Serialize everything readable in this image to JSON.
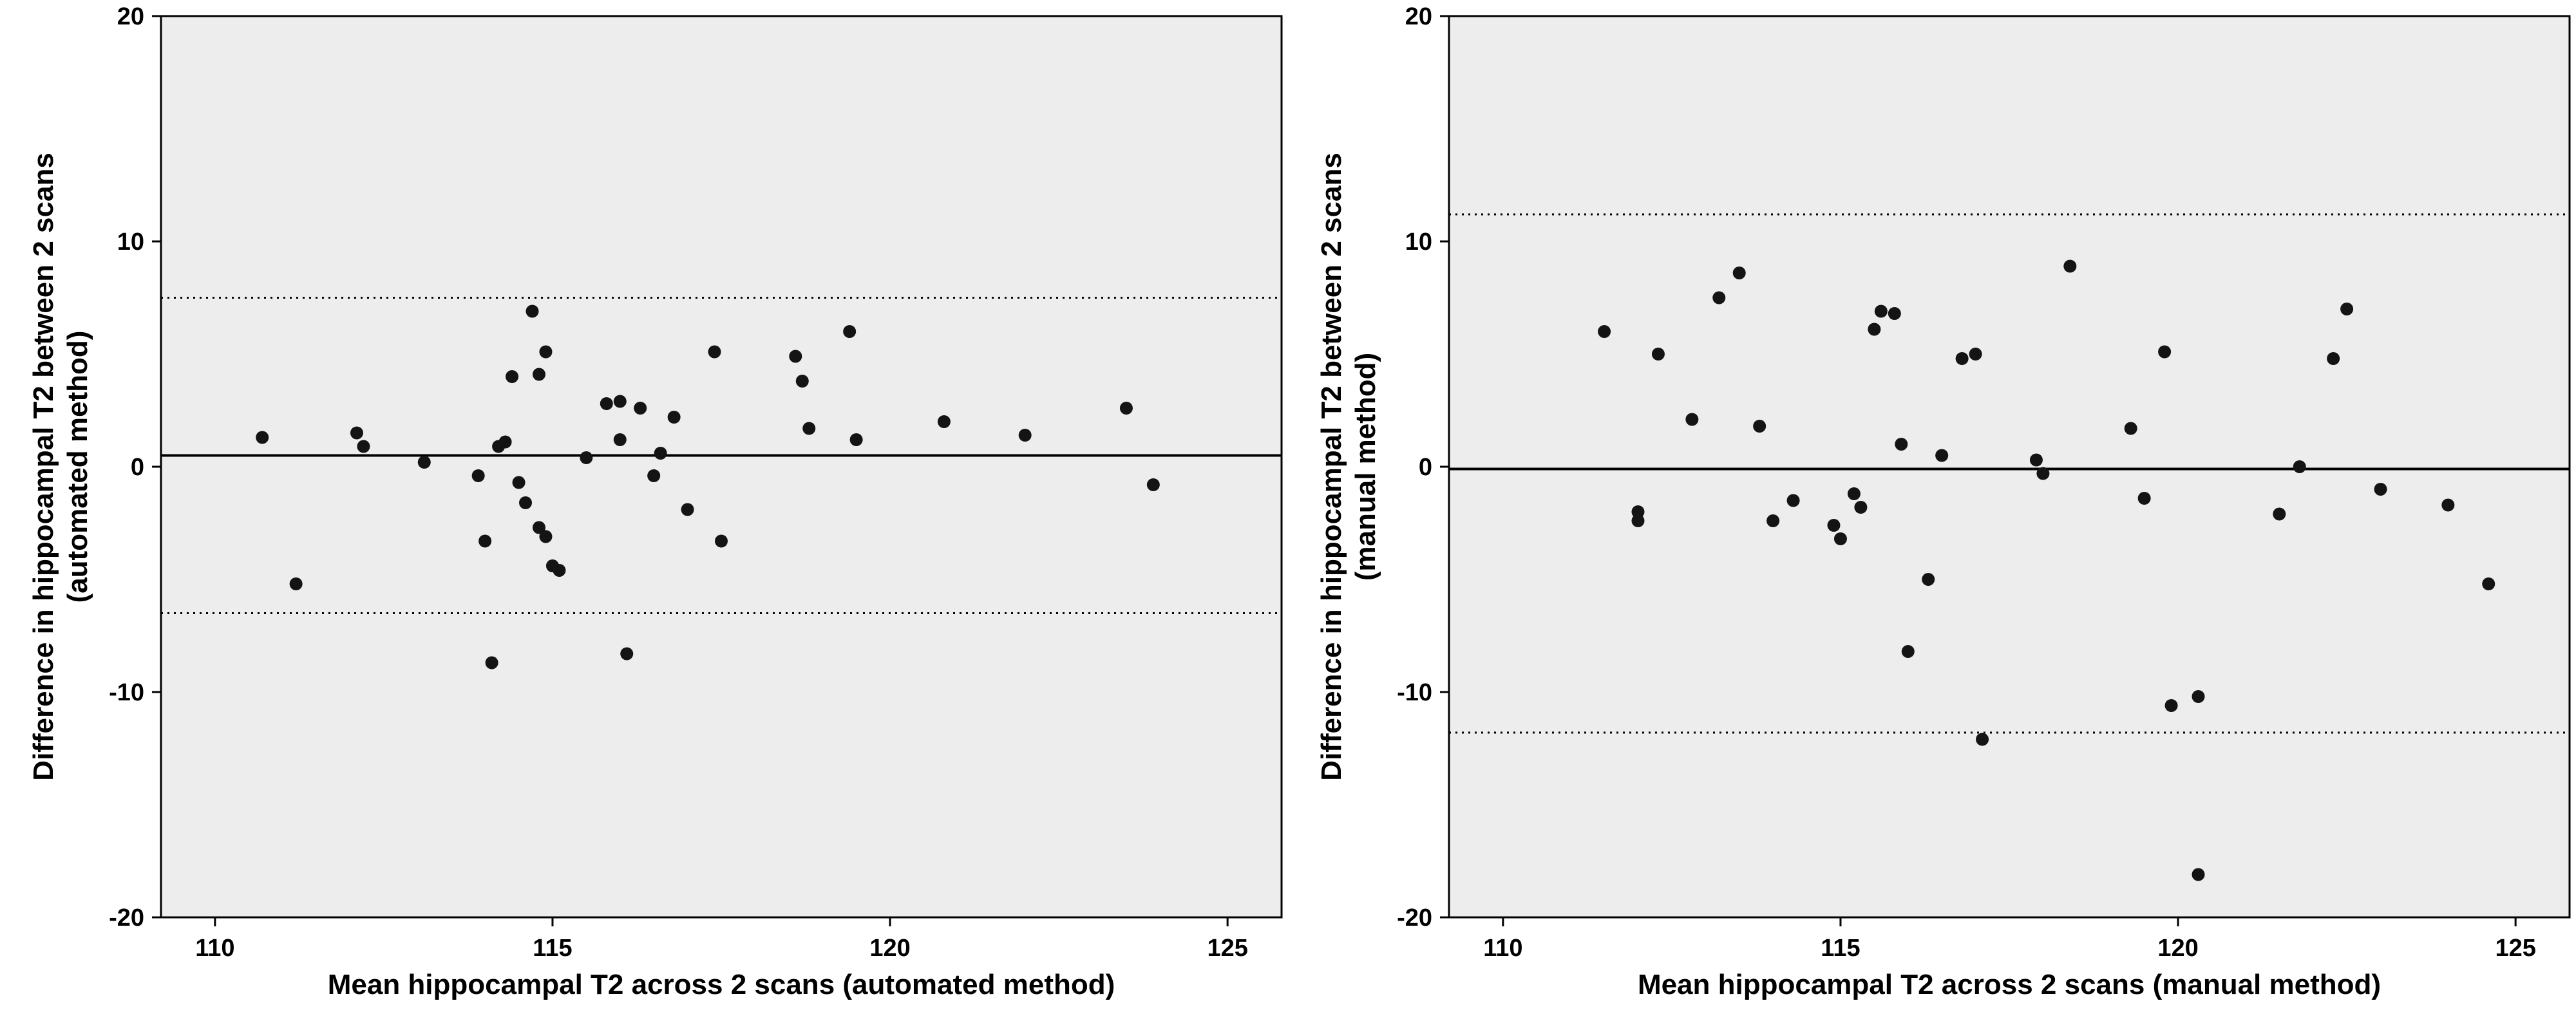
{
  "page": {
    "background": "#ffffff"
  },
  "style": {
    "plot_bg": "#ededed",
    "frame_color": "#000000",
    "point_color": "#141414",
    "mean_line_color": "#000000",
    "loa_line_color": "#000000",
    "tick_label_color": "#000000",
    "point_radius": 10
  },
  "chart_data": [
    {
      "type": "scatter",
      "subtype": "bland_altman",
      "title": "",
      "xlabel": "Mean hippocampal T2 across 2 scans (automated method)",
      "ylabel": "Difference in hippocampal T2 between 2 scans (automated method)",
      "ylabel_lines": [
        "Difference in hippocampal T2 between 2 scans",
        "(automated method)"
      ],
      "xlim": [
        109.2,
        125.8
      ],
      "ylim": [
        -20,
        20
      ],
      "xticks": [
        110,
        115,
        120,
        125
      ],
      "yticks": [
        20,
        10,
        0,
        -10,
        -20
      ],
      "grid": false,
      "legend": false,
      "reference_lines": {
        "mean": 0.5,
        "upper_loa": 7.5,
        "lower_loa": -6.5
      },
      "points": [
        [
          110.7,
          1.3
        ],
        [
          111.2,
          -5.2
        ],
        [
          112.1,
          1.5
        ],
        [
          112.2,
          0.9
        ],
        [
          113.1,
          0.2
        ],
        [
          113.9,
          -0.4
        ],
        [
          114.0,
          -3.3
        ],
        [
          114.1,
          -8.7
        ],
        [
          114.2,
          0.9
        ],
        [
          114.3,
          1.1
        ],
        [
          114.4,
          4.0
        ],
        [
          114.5,
          -0.7
        ],
        [
          114.6,
          -1.6
        ],
        [
          114.7,
          6.9
        ],
        [
          114.8,
          4.1
        ],
        [
          114.8,
          -2.7
        ],
        [
          114.9,
          -3.1
        ],
        [
          114.9,
          5.1
        ],
        [
          115.0,
          -4.4
        ],
        [
          115.1,
          -4.6
        ],
        [
          115.5,
          0.4
        ],
        [
          115.8,
          2.8
        ],
        [
          116.0,
          2.9
        ],
        [
          116.0,
          1.2
        ],
        [
          116.1,
          -8.3
        ],
        [
          116.3,
          2.6
        ],
        [
          116.5,
          -0.4
        ],
        [
          116.6,
          0.6
        ],
        [
          116.8,
          2.2
        ],
        [
          117.0,
          -1.9
        ],
        [
          117.4,
          5.1
        ],
        [
          117.5,
          -3.3
        ],
        [
          118.6,
          4.9
        ],
        [
          118.7,
          3.8
        ],
        [
          118.8,
          1.7
        ],
        [
          119.4,
          6.0
        ],
        [
          119.5,
          1.2
        ],
        [
          120.8,
          2.0
        ],
        [
          122.0,
          1.4
        ],
        [
          123.5,
          2.6
        ],
        [
          123.9,
          -0.8
        ]
      ]
    },
    {
      "type": "scatter",
      "subtype": "bland_altman",
      "title": "",
      "xlabel": "Mean hippocampal T2 across 2 scans (manual method)",
      "ylabel": "Difference in hippocampal T2 between 2 scans (manual method)",
      "ylabel_lines": [
        "Difference in hippocampal T2 between 2 scans",
        "(manual method)"
      ],
      "xlim": [
        109.2,
        125.8
      ],
      "ylim": [
        -20,
        20
      ],
      "xticks": [
        110,
        115,
        120,
        125
      ],
      "yticks": [
        20,
        10,
        0,
        -10,
        -20
      ],
      "grid": false,
      "legend": false,
      "reference_lines": {
        "mean": -0.1,
        "upper_loa": 11.2,
        "lower_loa": -11.8
      },
      "points": [
        [
          111.5,
          6.0
        ],
        [
          112.0,
          -2.0
        ],
        [
          112.0,
          -2.4
        ],
        [
          112.3,
          5.0
        ],
        [
          112.8,
          2.1
        ],
        [
          113.2,
          7.5
        ],
        [
          113.5,
          8.6
        ],
        [
          113.8,
          1.8
        ],
        [
          114.0,
          -2.4
        ],
        [
          114.3,
          -1.5
        ],
        [
          114.9,
          -2.6
        ],
        [
          115.0,
          -3.2
        ],
        [
          115.2,
          -1.2
        ],
        [
          115.3,
          -1.8
        ],
        [
          115.5,
          6.1
        ],
        [
          115.6,
          6.9
        ],
        [
          115.8,
          6.8
        ],
        [
          115.9,
          1.0
        ],
        [
          116.0,
          -8.2
        ],
        [
          116.3,
          -5.0
        ],
        [
          116.5,
          0.5
        ],
        [
          116.8,
          4.8
        ],
        [
          117.0,
          5.0
        ],
        [
          117.1,
          -12.1
        ],
        [
          117.9,
          0.3
        ],
        [
          118.0,
          -0.3
        ],
        [
          118.4,
          8.9
        ],
        [
          119.3,
          1.7
        ],
        [
          119.5,
          -1.4
        ],
        [
          119.8,
          5.1
        ],
        [
          119.9,
          -10.6
        ],
        [
          120.3,
          -10.2
        ],
        [
          120.3,
          -18.1
        ],
        [
          121.5,
          -2.1
        ],
        [
          121.8,
          0.0
        ],
        [
          122.3,
          4.8
        ],
        [
          122.5,
          7.0
        ],
        [
          123.0,
          -1.0
        ],
        [
          124.0,
          -1.7
        ],
        [
          124.6,
          -5.2
        ]
      ]
    }
  ]
}
